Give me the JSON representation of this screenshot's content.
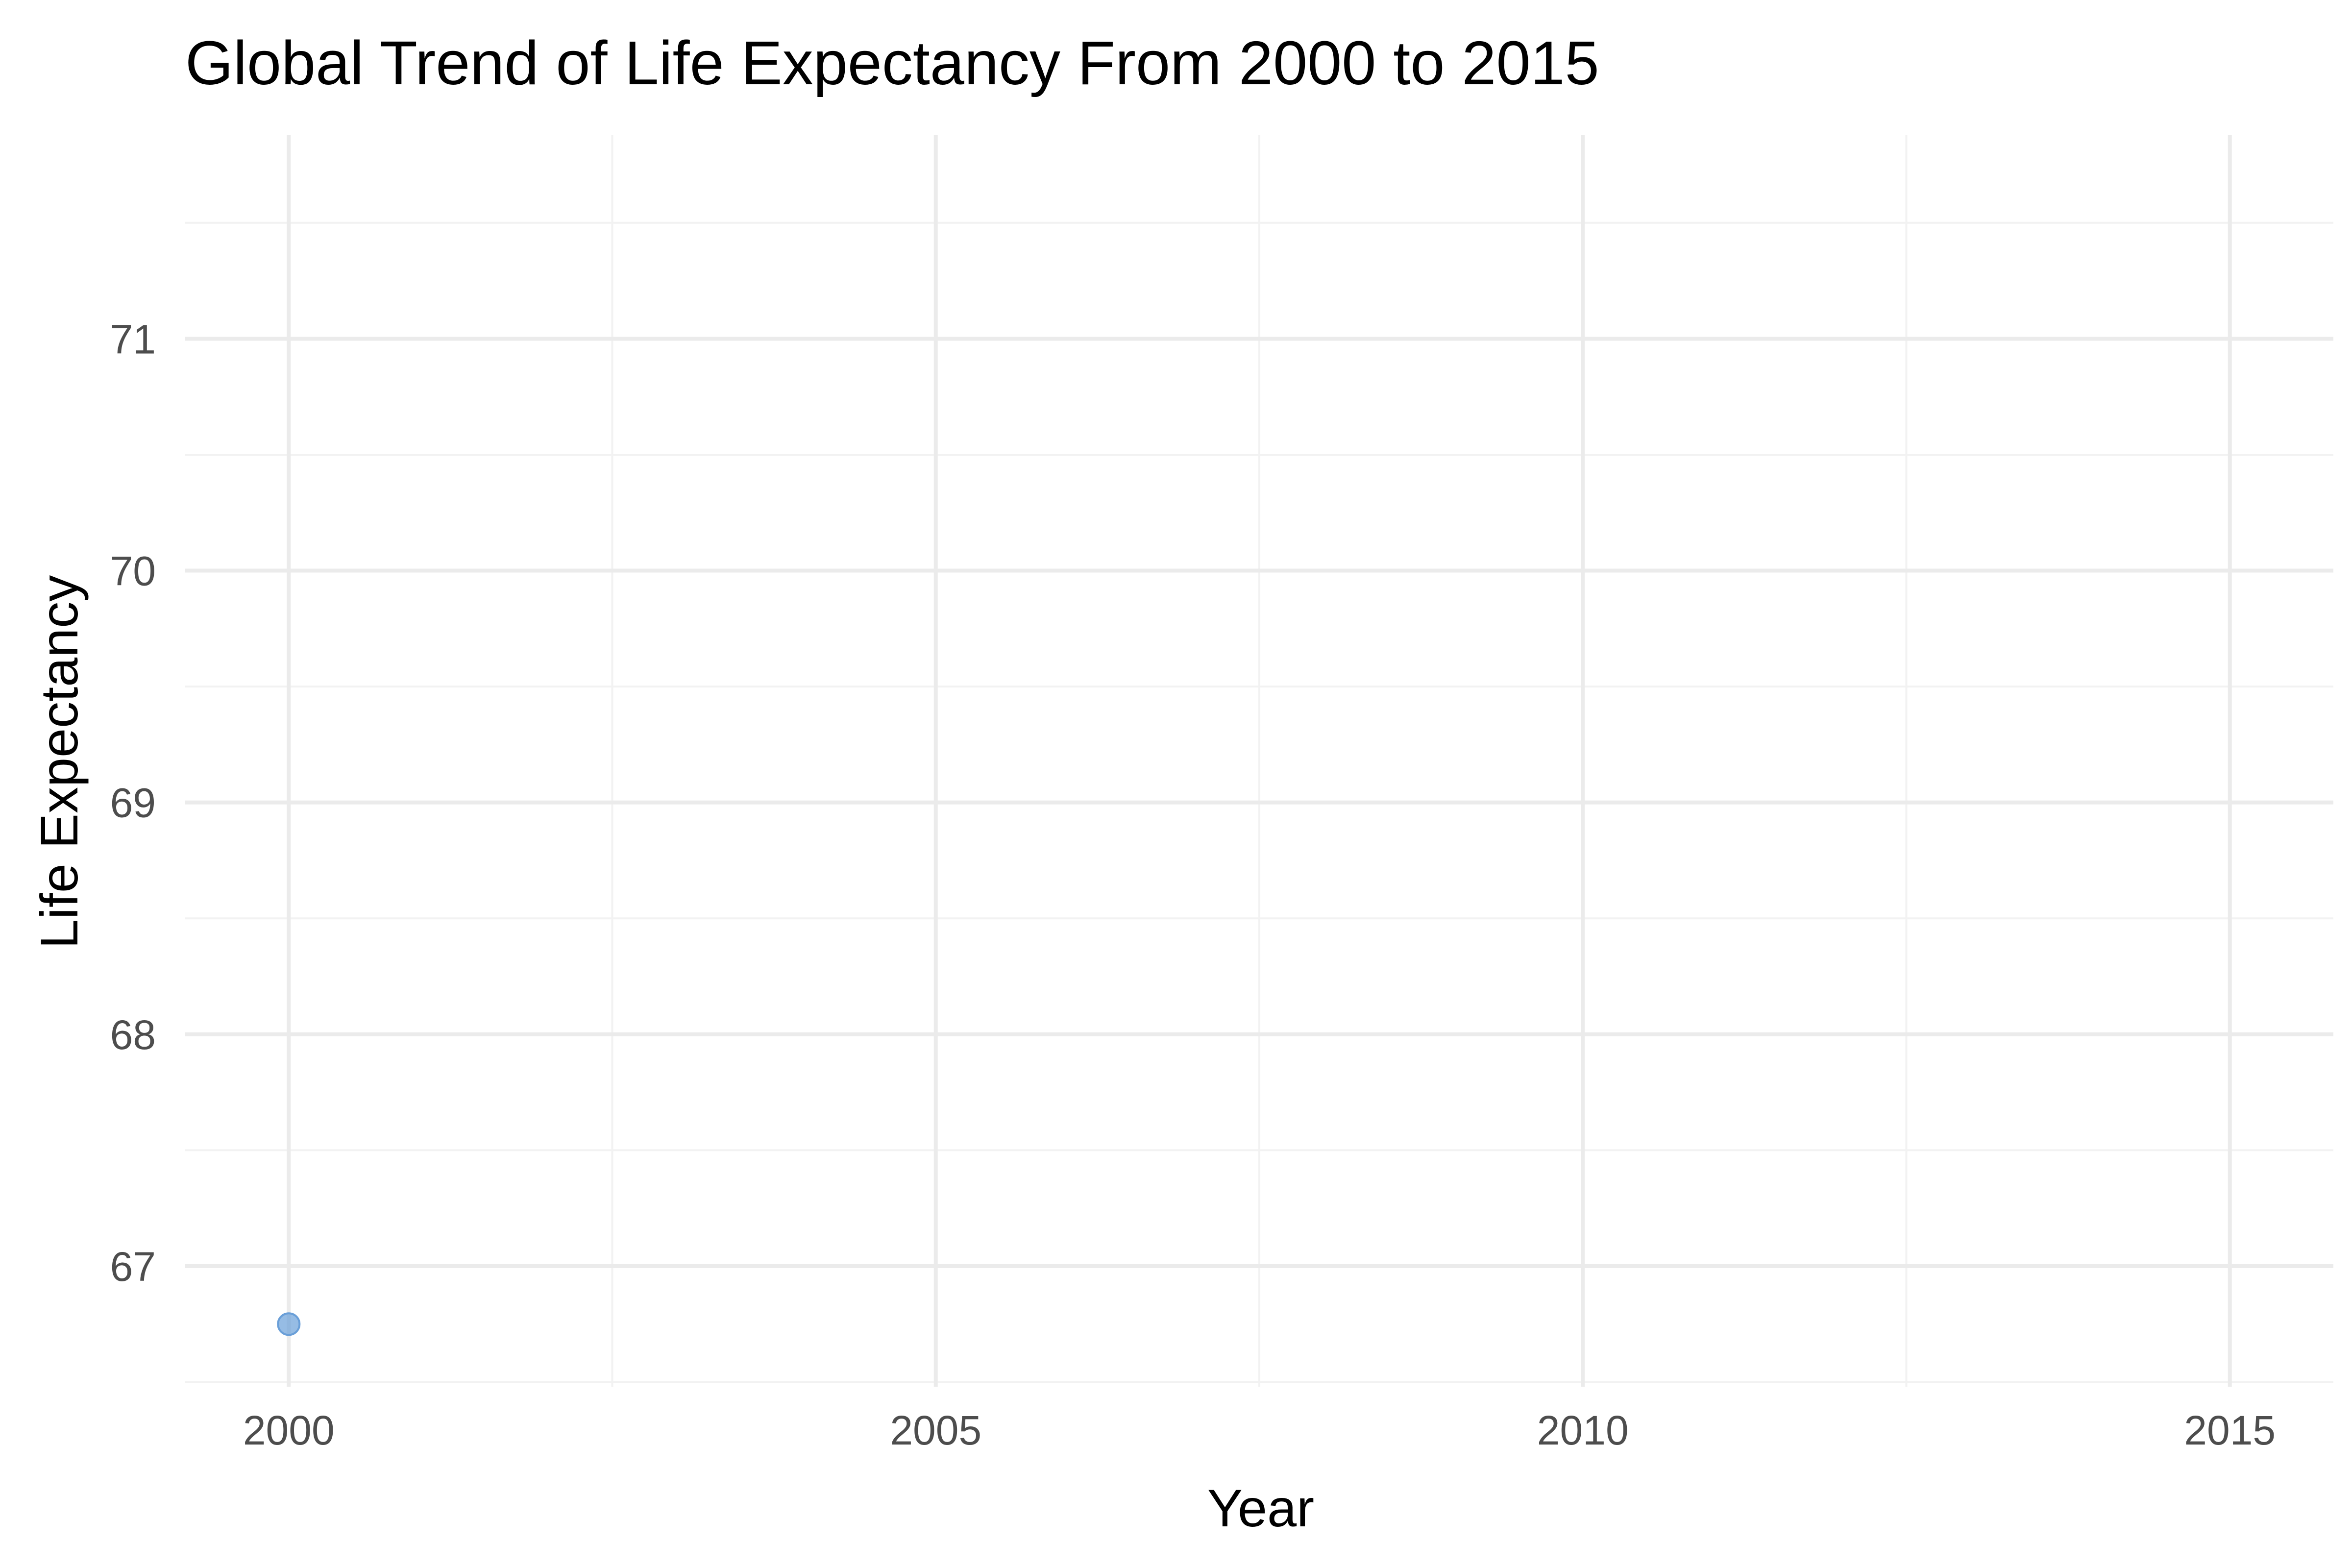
{
  "chart_data": {
    "type": "scatter",
    "title": "Global Trend of Life Expectancy From 2000 to 2015",
    "xlabel": "Year",
    "ylabel": "Life Expectancy",
    "xlim": [
      1999.2,
      2015.8
    ],
    "ylim": [
      66.48,
      71.88
    ],
    "x_ticks": [
      2000,
      2005,
      2010,
      2015
    ],
    "y_ticks": [
      67,
      68,
      69,
      70,
      71
    ],
    "grid": true,
    "point_color": "#6a9fd8",
    "points": [
      {
        "x": 2000,
        "y": 66.75
      }
    ]
  }
}
